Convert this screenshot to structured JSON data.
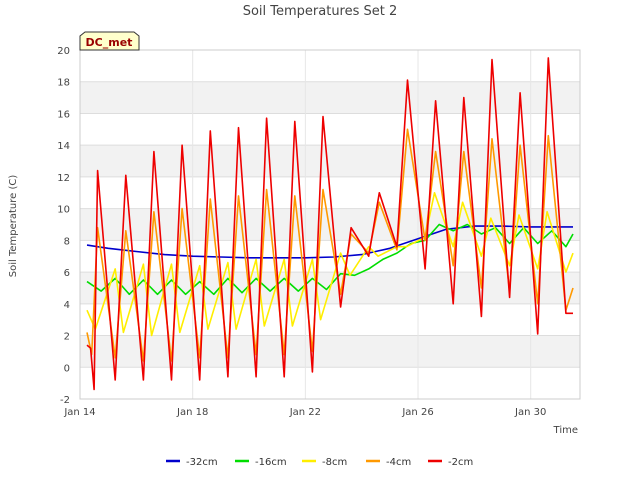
{
  "chart_data": {
    "type": "line",
    "title": "Soil Temperatures Set 2",
    "xlabel": "Time",
    "ylabel": "Soil Temperature (C)",
    "ylim": [
      -2,
      20
    ],
    "xlim": [
      "2024-01-14",
      "2024-01-31T18:00"
    ],
    "yticks": [
      -2,
      0,
      2,
      4,
      6,
      8,
      10,
      12,
      14,
      16,
      18,
      20
    ],
    "xticks": [
      {
        "x": "2024-01-14",
        "label": "Jan 14"
      },
      {
        "x": "2024-01-18",
        "label": "Jan 18"
      },
      {
        "x": "2024-01-22",
        "label": "Jan 22"
      },
      {
        "x": "2024-01-26",
        "label": "Jan 26"
      },
      {
        "x": "2024-01-30",
        "label": "Jan 30"
      }
    ],
    "grid": true,
    "legend": "bottom",
    "annotation": "DC_met",
    "series": [
      {
        "name": "-32cm",
        "color": "#0000cc",
        "x": [
          "2024-01-14T06:00",
          "2024-01-15T00:00",
          "2024-01-16T00:00",
          "2024-01-17T00:00",
          "2024-01-18T00:00",
          "2024-01-19T00:00",
          "2024-01-20T00:00",
          "2024-01-21T00:00",
          "2024-01-22T00:00",
          "2024-01-23T00:00",
          "2024-01-24T00:00",
          "2024-01-25T00:00",
          "2024-01-26T00:00",
          "2024-01-27T00:00",
          "2024-01-28T00:00",
          "2024-01-29T00:00",
          "2024-01-30T00:00",
          "2024-01-31T00:00",
          "2024-01-31T12:00"
        ],
        "values": [
          7.7,
          7.5,
          7.3,
          7.1,
          7.0,
          6.95,
          6.9,
          6.9,
          6.9,
          6.95,
          7.1,
          7.5,
          8.1,
          8.7,
          8.9,
          8.9,
          8.85,
          8.85,
          8.85
        ]
      },
      {
        "name": "-16cm",
        "color": "#00dd00",
        "x": [
          "2024-01-14T06:00",
          "2024-01-14T18:00",
          "2024-01-15T06:00",
          "2024-01-15T18:00",
          "2024-01-16T06:00",
          "2024-01-16T18:00",
          "2024-01-17T06:00",
          "2024-01-17T18:00",
          "2024-01-18T06:00",
          "2024-01-18T18:00",
          "2024-01-19T06:00",
          "2024-01-19T18:00",
          "2024-01-20T06:00",
          "2024-01-20T18:00",
          "2024-01-21T06:00",
          "2024-01-21T18:00",
          "2024-01-22T06:00",
          "2024-01-22T18:00",
          "2024-01-23T06:00",
          "2024-01-23T18:00",
          "2024-01-24T06:00",
          "2024-01-24T18:00",
          "2024-01-25T06:00",
          "2024-01-25T18:00",
          "2024-01-26T06:00",
          "2024-01-26T18:00",
          "2024-01-27T06:00",
          "2024-01-27T18:00",
          "2024-01-28T06:00",
          "2024-01-28T18:00",
          "2024-01-29T06:00",
          "2024-01-29T18:00",
          "2024-01-30T06:00",
          "2024-01-30T18:00",
          "2024-01-31T06:00",
          "2024-01-31T12:00"
        ],
        "values": [
          5.4,
          4.8,
          5.6,
          4.6,
          5.5,
          4.6,
          5.5,
          4.6,
          5.4,
          4.6,
          5.6,
          4.7,
          5.6,
          4.8,
          5.6,
          4.8,
          5.6,
          4.9,
          5.9,
          5.8,
          6.2,
          6.8,
          7.2,
          7.8,
          8.0,
          9.0,
          8.6,
          9.0,
          8.4,
          8.8,
          7.8,
          8.8,
          7.8,
          8.6,
          7.6,
          8.4
        ]
      },
      {
        "name": "-8cm",
        "color": "#ffee00",
        "x": [
          "2024-01-14T06:00",
          "2024-01-14T13:00",
          "2024-01-15T06:00",
          "2024-01-15T13:00",
          "2024-01-16T06:00",
          "2024-01-16T13:00",
          "2024-01-17T06:00",
          "2024-01-17T13:00",
          "2024-01-18T06:00",
          "2024-01-18T13:00",
          "2024-01-19T06:00",
          "2024-01-19T13:00",
          "2024-01-20T06:00",
          "2024-01-20T13:00",
          "2024-01-21T06:00",
          "2024-01-21T13:00",
          "2024-01-22T06:00",
          "2024-01-22T13:00",
          "2024-01-23T06:00",
          "2024-01-23T14:00",
          "2024-01-24T06:00",
          "2024-01-24T14:00",
          "2024-01-25T06:00",
          "2024-01-25T14:00",
          "2024-01-26T06:00",
          "2024-01-26T14:00",
          "2024-01-27T06:00",
          "2024-01-27T14:00",
          "2024-01-28T06:00",
          "2024-01-28T14:00",
          "2024-01-29T06:00",
          "2024-01-29T14:00",
          "2024-01-30T06:00",
          "2024-01-30T14:00",
          "2024-01-31T06:00",
          "2024-01-31T12:00"
        ],
        "values": [
          3.6,
          2.4,
          6.2,
          2.2,
          6.5,
          2.0,
          6.5,
          2.2,
          6.4,
          2.4,
          6.6,
          2.4,
          6.8,
          2.6,
          6.8,
          2.6,
          6.8,
          3.0,
          7.2,
          5.8,
          7.6,
          7.0,
          7.6,
          7.6,
          8.2,
          11.0,
          7.6,
          10.4,
          7.0,
          9.4,
          6.4,
          9.6,
          6.2,
          9.8,
          6.0,
          7.2
        ]
      },
      {
        "name": "-4cm",
        "color": "#ff9900",
        "x": [
          "2024-01-14T06:00",
          "2024-01-14T10:00",
          "2024-01-14T15:00",
          "2024-01-15T06:00",
          "2024-01-15T15:00",
          "2024-01-16T06:00",
          "2024-01-16T15:00",
          "2024-01-17T06:00",
          "2024-01-17T15:00",
          "2024-01-18T06:00",
          "2024-01-18T15:00",
          "2024-01-19T06:00",
          "2024-01-19T15:00",
          "2024-01-20T06:00",
          "2024-01-20T15:00",
          "2024-01-21T06:00",
          "2024-01-21T15:00",
          "2024-01-22T06:00",
          "2024-01-22T15:00",
          "2024-01-23T06:00",
          "2024-01-23T15:00",
          "2024-01-24T06:00",
          "2024-01-24T15:00",
          "2024-01-25T06:00",
          "2024-01-25T15:00",
          "2024-01-26T06:00",
          "2024-01-26T15:00",
          "2024-01-27T06:00",
          "2024-01-27T15:00",
          "2024-01-28T06:00",
          "2024-01-28T15:00",
          "2024-01-29T06:00",
          "2024-01-29T15:00",
          "2024-01-30T06:00",
          "2024-01-30T15:00",
          "2024-01-31T06:00",
          "2024-01-31T12:00"
        ],
        "values": [
          2.2,
          0.8,
          8.8,
          0.6,
          8.6,
          0.4,
          9.8,
          0.4,
          10.0,
          0.6,
          10.6,
          0.6,
          10.8,
          0.8,
          11.2,
          0.8,
          10.8,
          1.0,
          11.2,
          4.6,
          8.4,
          7.2,
          10.4,
          7.4,
          15.0,
          8.0,
          13.6,
          6.4,
          13.6,
          5.0,
          14.4,
          4.8,
          14.0,
          4.0,
          14.6,
          3.6,
          5.0
        ]
      },
      {
        "name": "-2cm",
        "color": "#ee0000",
        "x": [
          "2024-01-14T06:00",
          "2024-01-14T09:00",
          "2024-01-14T12:00",
          "2024-01-14T15:00",
          "2024-01-15T06:00",
          "2024-01-15T15:00",
          "2024-01-16T06:00",
          "2024-01-16T15:00",
          "2024-01-17T06:00",
          "2024-01-17T15:00",
          "2024-01-18T06:00",
          "2024-01-18T15:00",
          "2024-01-19T06:00",
          "2024-01-19T15:00",
          "2024-01-20T06:00",
          "2024-01-20T15:00",
          "2024-01-21T06:00",
          "2024-01-21T15:00",
          "2024-01-22T06:00",
          "2024-01-22T15:00",
          "2024-01-23T06:00",
          "2024-01-23T15:00",
          "2024-01-24T06:00",
          "2024-01-24T15:00",
          "2024-01-25T06:00",
          "2024-01-25T15:00",
          "2024-01-26T06:00",
          "2024-01-26T15:00",
          "2024-01-27T06:00",
          "2024-01-27T15:00",
          "2024-01-28T06:00",
          "2024-01-28T15:00",
          "2024-01-29T06:00",
          "2024-01-29T15:00",
          "2024-01-30T06:00",
          "2024-01-30T15:00",
          "2024-01-31T06:00",
          "2024-01-31T12:00"
        ],
        "values": [
          1.4,
          1.2,
          -1.4,
          12.4,
          -0.8,
          12.1,
          -0.8,
          13.6,
          -0.8,
          14.0,
          -0.8,
          14.9,
          -0.6,
          15.1,
          -0.6,
          15.7,
          -0.6,
          15.5,
          -0.3,
          15.8,
          3.8,
          8.8,
          7.0,
          11.0,
          7.6,
          18.1,
          6.2,
          16.8,
          4.0,
          17.0,
          3.2,
          19.4,
          4.4,
          17.3,
          2.1,
          19.5,
          3.4,
          3.4
        ]
      }
    ]
  }
}
